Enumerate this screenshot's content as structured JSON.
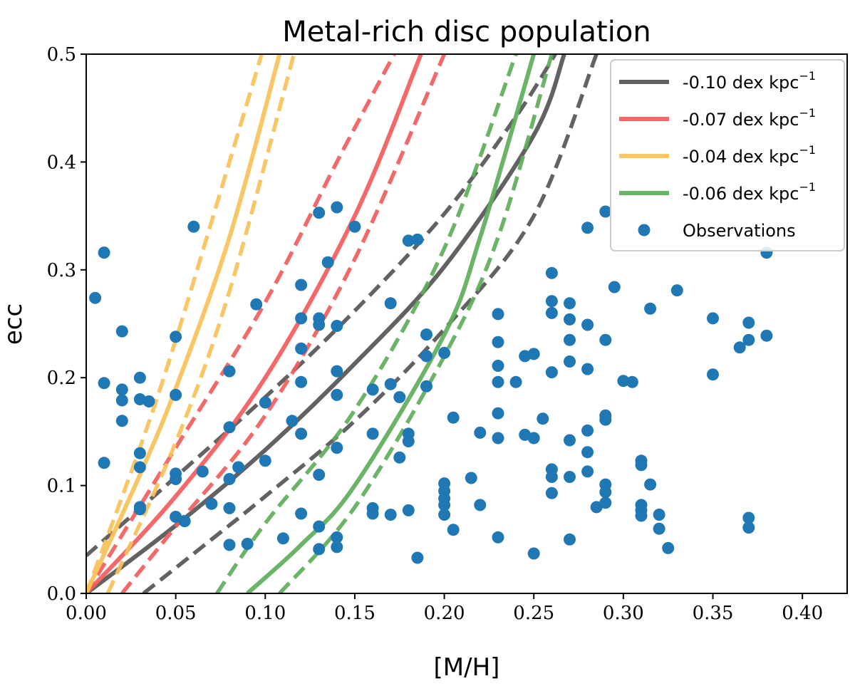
{
  "chart_data": {
    "type": "scatter",
    "title": "Metal-rich disc population",
    "xlabel": "[M/H]",
    "ylabel": "ecc",
    "xlim": [
      0.0,
      0.425
    ],
    "ylim": [
      0.0,
      0.5
    ],
    "xticks": [
      "0.00",
      "0.05",
      "0.10",
      "0.15",
      "0.20",
      "0.25",
      "0.30",
      "0.35",
      "0.40"
    ],
    "xtick_values": [
      0.0,
      0.05,
      0.1,
      0.15,
      0.2,
      0.25,
      0.3,
      0.35,
      0.4
    ],
    "yticks": [
      "0.0",
      "0.1",
      "0.2",
      "0.3",
      "0.4",
      "0.5"
    ],
    "ytick_values": [
      0.0,
      0.1,
      0.2,
      0.3,
      0.4,
      0.5
    ],
    "legend_position": "top-right",
    "legend_suffix": "dex kpc",
    "legend_sup": "−1",
    "lines": [
      {
        "name": "-0.10 dex kpc^-1",
        "label_value": "-0.10",
        "color": "#555555",
        "solid": [
          [
            0.0,
            0.0
          ],
          [
            0.05,
            0.063
          ],
          [
            0.1,
            0.133
          ],
          [
            0.15,
            0.213
          ],
          [
            0.2,
            0.303
          ],
          [
            0.25,
            0.425
          ],
          [
            0.267,
            0.5
          ]
        ],
        "dashed": [
          [
            [
              0.0,
              0.035
            ],
            [
              0.05,
              0.108
            ],
            [
              0.1,
              0.182
            ],
            [
              0.15,
              0.262
            ],
            [
              0.2,
              0.352
            ],
            [
              0.24,
              0.442
            ],
            [
              0.262,
              0.5
            ]
          ],
          [
            [
              0.032,
              0.0
            ],
            [
              0.07,
              0.05
            ],
            [
              0.1,
              0.09
            ],
            [
              0.15,
              0.16
            ],
            [
              0.2,
              0.245
            ],
            [
              0.25,
              0.35
            ],
            [
              0.285,
              0.5
            ]
          ]
        ]
      },
      {
        "name": "-0.07 dex kpc^-1",
        "label_value": "-0.07",
        "color": "#F25B5B",
        "solid": [
          [
            0.0,
            0.0
          ],
          [
            0.05,
            0.09
          ],
          [
            0.1,
            0.2
          ],
          [
            0.15,
            0.35
          ],
          [
            0.187,
            0.5
          ]
        ],
        "dashed": [
          [
            [
              0.0,
              0.0
            ],
            [
              0.05,
              0.135
            ],
            [
              0.1,
              0.27
            ],
            [
              0.14,
              0.4
            ],
            [
              0.172,
              0.5
            ]
          ],
          [
            [
              0.02,
              0.0
            ],
            [
              0.05,
              0.062
            ],
            [
              0.1,
              0.165
            ],
            [
              0.15,
              0.31
            ],
            [
              0.2,
              0.5
            ]
          ]
        ]
      },
      {
        "name": "-0.04 dex kpc^-1",
        "label_value": "-0.04",
        "color": "#F9C159",
        "solid": [
          [
            0.0,
            0.0
          ],
          [
            0.03,
            0.11
          ],
          [
            0.05,
            0.19
          ],
          [
            0.08,
            0.33
          ],
          [
            0.108,
            0.5
          ]
        ],
        "dashed": [
          [
            [
              0.0,
              0.0
            ],
            [
              0.03,
              0.135
            ],
            [
              0.05,
              0.235
            ],
            [
              0.08,
              0.4
            ],
            [
              0.098,
              0.5
            ]
          ],
          [
            [
              0.012,
              0.0
            ],
            [
              0.05,
              0.14
            ],
            [
              0.08,
              0.28
            ],
            [
              0.116,
              0.5
            ]
          ]
        ]
      },
      {
        "name": "-0.06 dex kpc^-1",
        "label_value": "-0.06",
        "color": "#5DAD5A",
        "solid": [
          [
            0.09,
            0.0
          ],
          [
            0.12,
            0.045
          ],
          [
            0.15,
            0.1
          ],
          [
            0.2,
            0.24
          ],
          [
            0.22,
            0.33
          ],
          [
            0.25,
            0.5
          ]
        ],
        "dashed": [
          [
            [
              0.073,
              0.0
            ],
            [
              0.1,
              0.065
            ],
            [
              0.15,
              0.17
            ],
            [
              0.2,
              0.32
            ],
            [
              0.24,
              0.5
            ]
          ],
          [
            [
              0.108,
              0.0
            ],
            [
              0.15,
              0.08
            ],
            [
              0.2,
              0.22
            ],
            [
              0.23,
              0.33
            ],
            [
              0.26,
              0.5
            ]
          ]
        ]
      }
    ],
    "scatter": {
      "name": "Observations",
      "color": "#1F77B4",
      "points": [
        [
          0.005,
          0.274
        ],
        [
          0.01,
          0.316
        ],
        [
          0.01,
          0.195
        ],
        [
          0.01,
          0.121
        ],
        [
          0.02,
          0.243
        ],
        [
          0.02,
          0.189
        ],
        [
          0.02,
          0.179
        ],
        [
          0.02,
          0.16
        ],
        [
          0.03,
          0.2
        ],
        [
          0.03,
          0.18
        ],
        [
          0.035,
          0.178
        ],
        [
          0.03,
          0.13
        ],
        [
          0.03,
          0.117
        ],
        [
          0.03,
          0.08
        ],
        [
          0.03,
          0.078
        ],
        [
          0.05,
          0.238
        ],
        [
          0.05,
          0.184
        ],
        [
          0.05,
          0.111
        ],
        [
          0.05,
          0.106
        ],
        [
          0.05,
          0.071
        ],
        [
          0.055,
          0.067
        ],
        [
          0.06,
          0.34
        ],
        [
          0.065,
          0.113
        ],
        [
          0.07,
          0.083
        ],
        [
          0.08,
          0.206
        ],
        [
          0.08,
          0.154
        ],
        [
          0.08,
          0.106
        ],
        [
          0.085,
          0.117
        ],
        [
          0.08,
          0.079
        ],
        [
          0.08,
          0.045
        ],
        [
          0.09,
          0.046
        ],
        [
          0.095,
          0.268
        ],
        [
          0.1,
          0.177
        ],
        [
          0.1,
          0.123
        ],
        [
          0.11,
          0.051
        ],
        [
          0.115,
          0.16
        ],
        [
          0.12,
          0.286
        ],
        [
          0.12,
          0.255
        ],
        [
          0.12,
          0.227
        ],
        [
          0.12,
          0.196
        ],
        [
          0.12,
          0.148
        ],
        [
          0.12,
          0.074
        ],
        [
          0.13,
          0.353
        ],
        [
          0.13,
          0.255
        ],
        [
          0.13,
          0.249
        ],
        [
          0.13,
          0.11
        ],
        [
          0.13,
          0.062
        ],
        [
          0.13,
          0.041
        ],
        [
          0.135,
          0.307
        ],
        [
          0.14,
          0.358
        ],
        [
          0.14,
          0.248
        ],
        [
          0.14,
          0.206
        ],
        [
          0.14,
          0.184
        ],
        [
          0.14,
          0.135
        ],
        [
          0.14,
          0.052
        ],
        [
          0.14,
          0.043
        ],
        [
          0.15,
          0.34
        ],
        [
          0.16,
          0.189
        ],
        [
          0.16,
          0.148
        ],
        [
          0.16,
          0.079
        ],
        [
          0.16,
          0.074
        ],
        [
          0.17,
          0.269
        ],
        [
          0.17,
          0.194
        ],
        [
          0.17,
          0.073
        ],
        [
          0.175,
          0.182
        ],
        [
          0.175,
          0.126
        ],
        [
          0.18,
          0.327
        ],
        [
          0.185,
          0.328
        ],
        [
          0.18,
          0.148
        ],
        [
          0.18,
          0.141
        ],
        [
          0.18,
          0.077
        ],
        [
          0.185,
          0.033
        ],
        [
          0.19,
          0.24
        ],
        [
          0.19,
          0.22
        ],
        [
          0.19,
          0.192
        ],
        [
          0.2,
          0.223
        ],
        [
          0.2,
          0.102
        ],
        [
          0.2,
          0.095
        ],
        [
          0.2,
          0.088
        ],
        [
          0.2,
          0.082
        ],
        [
          0.2,
          0.073
        ],
        [
          0.205,
          0.059
        ],
        [
          0.205,
          0.163
        ],
        [
          0.215,
          0.107
        ],
        [
          0.22,
          0.149
        ],
        [
          0.22,
          0.082
        ],
        [
          0.23,
          0.259
        ],
        [
          0.23,
          0.233
        ],
        [
          0.23,
          0.211
        ],
        [
          0.23,
          0.196
        ],
        [
          0.23,
          0.167
        ],
        [
          0.23,
          0.144
        ],
        [
          0.23,
          0.052
        ],
        [
          0.24,
          0.196
        ],
        [
          0.245,
          0.22
        ],
        [
          0.245,
          0.147
        ],
        [
          0.25,
          0.222
        ],
        [
          0.25,
          0.144
        ],
        [
          0.25,
          0.037
        ],
        [
          0.255,
          0.162
        ],
        [
          0.26,
          0.297
        ],
        [
          0.26,
          0.271
        ],
        [
          0.26,
          0.26
        ],
        [
          0.26,
          0.205
        ],
        [
          0.26,
          0.115
        ],
        [
          0.26,
          0.108
        ],
        [
          0.26,
          0.093
        ],
        [
          0.27,
          0.269
        ],
        [
          0.27,
          0.254
        ],
        [
          0.27,
          0.235
        ],
        [
          0.27,
          0.215
        ],
        [
          0.27,
          0.142
        ],
        [
          0.27,
          0.108
        ],
        [
          0.27,
          0.05
        ],
        [
          0.28,
          0.339
        ],
        [
          0.28,
          0.249
        ],
        [
          0.28,
          0.208
        ],
        [
          0.28,
          0.151
        ],
        [
          0.28,
          0.131
        ],
        [
          0.28,
          0.113
        ],
        [
          0.285,
          0.08
        ],
        [
          0.29,
          0.354
        ],
        [
          0.29,
          0.235
        ],
        [
          0.29,
          0.165
        ],
        [
          0.29,
          0.161
        ],
        [
          0.29,
          0.101
        ],
        [
          0.29,
          0.094
        ],
        [
          0.29,
          0.084
        ],
        [
          0.295,
          0.284
        ],
        [
          0.3,
          0.197
        ],
        [
          0.305,
          0.196
        ],
        [
          0.31,
          0.123
        ],
        [
          0.31,
          0.119
        ],
        [
          0.31,
          0.082
        ],
        [
          0.31,
          0.077
        ],
        [
          0.31,
          0.072
        ],
        [
          0.315,
          0.264
        ],
        [
          0.315,
          0.101
        ],
        [
          0.32,
          0.073
        ],
        [
          0.32,
          0.06
        ],
        [
          0.325,
          0.042
        ],
        [
          0.33,
          0.281
        ],
        [
          0.35,
          0.255
        ],
        [
          0.35,
          0.203
        ],
        [
          0.365,
          0.228
        ],
        [
          0.37,
          0.251
        ],
        [
          0.37,
          0.235
        ],
        [
          0.37,
          0.07
        ],
        [
          0.37,
          0.061
        ],
        [
          0.38,
          0.239
        ],
        [
          0.38,
          0.316
        ]
      ]
    }
  }
}
